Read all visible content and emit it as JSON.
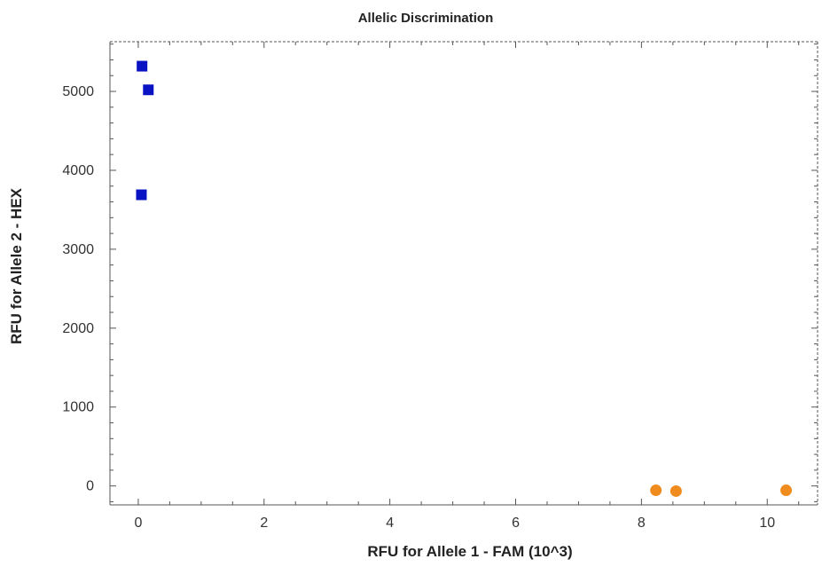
{
  "chart_data": {
    "type": "scatter",
    "title": "Allelic Discrimination",
    "xlabel": "RFU for Allele 1 - FAM (10^3)",
    "ylabel": "RFU for Allele 2 - HEX",
    "xlim": [
      -0.45,
      10.8
    ],
    "ylim": [
      -240,
      5630
    ],
    "x_ticks": [
      0,
      2,
      4,
      6,
      8,
      10
    ],
    "x_tick_labels": [
      "0",
      "2",
      "4",
      "6",
      "8",
      "10"
    ],
    "y_ticks": [
      0,
      1000,
      2000,
      3000,
      4000,
      5000
    ],
    "y_tick_labels": [
      "0",
      "1000",
      "2000",
      "3000",
      "4000",
      "5000"
    ],
    "grid": false,
    "series": [
      {
        "marker": "square",
        "color": "#0a13c4",
        "points": [
          {
            "x": 0.06,
            "y": 5320
          },
          {
            "x": 0.16,
            "y": 5020
          },
          {
            "x": 0.05,
            "y": 3690
          }
        ]
      },
      {
        "marker": "circle",
        "color": "#f08c1e",
        "points": [
          {
            "x": 8.23,
            "y": -55
          },
          {
            "x": 8.55,
            "y": -65
          },
          {
            "x": 10.3,
            "y": -55
          }
        ]
      }
    ]
  }
}
